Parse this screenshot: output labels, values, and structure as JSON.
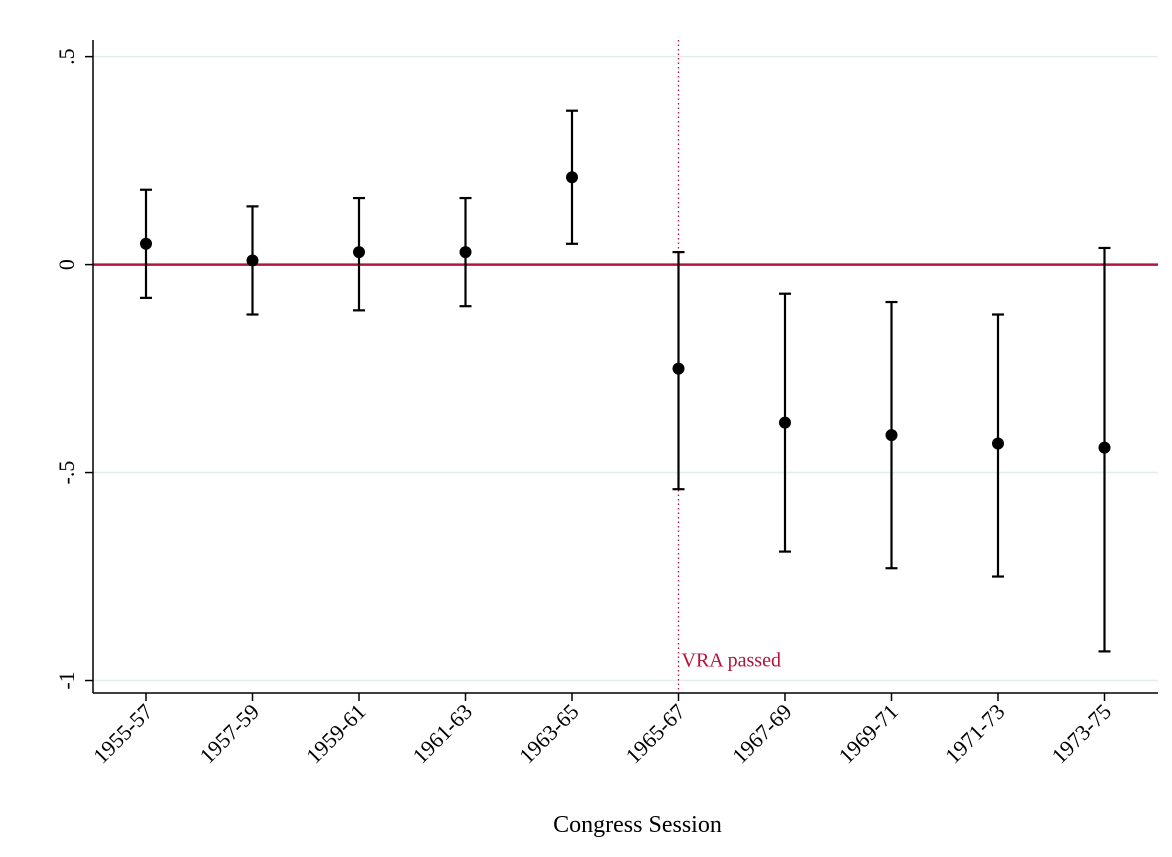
{
  "chart_data": {
    "type": "scatter",
    "subtype": "coefficient-plot-with-error-bars",
    "title": "",
    "xlabel": "Congress Session",
    "ylabel": "",
    "categories": [
      "1955-57",
      "1957-59",
      "1959-61",
      "1961-63",
      "1963-65",
      "1965-67",
      "1967-69",
      "1969-71",
      "1971-73",
      "1973-75"
    ],
    "series": [
      {
        "values": [
          0.05,
          0.01,
          0.03,
          0.03,
          0.21,
          -0.25,
          -0.38,
          -0.41,
          -0.43,
          -0.44
        ],
        "lower": [
          -0.08,
          -0.12,
          -0.11,
          -0.1,
          0.05,
          -0.54,
          -0.69,
          -0.73,
          -0.75,
          -0.93
        ],
        "upper": [
          0.18,
          0.14,
          0.16,
          0.16,
          0.37,
          0.03,
          -0.07,
          -0.09,
          -0.12,
          0.04
        ],
        "color": "#000000"
      }
    ],
    "ylim": [
      -1.03,
      0.54
    ],
    "yticks": [
      0.5,
      0,
      -0.5,
      -1
    ],
    "ytick_labels": [
      ".5",
      "0",
      "-.5",
      "-1"
    ],
    "grid": "horizontal",
    "reference_line": {
      "axis": "y",
      "value": 0,
      "color": "#b5123c"
    },
    "annotations": [
      {
        "text": "VRA passed",
        "x_category": "1965-67",
        "line": "vertical-dotted",
        "color": "#b5123c"
      }
    ],
    "legend": "none"
  }
}
